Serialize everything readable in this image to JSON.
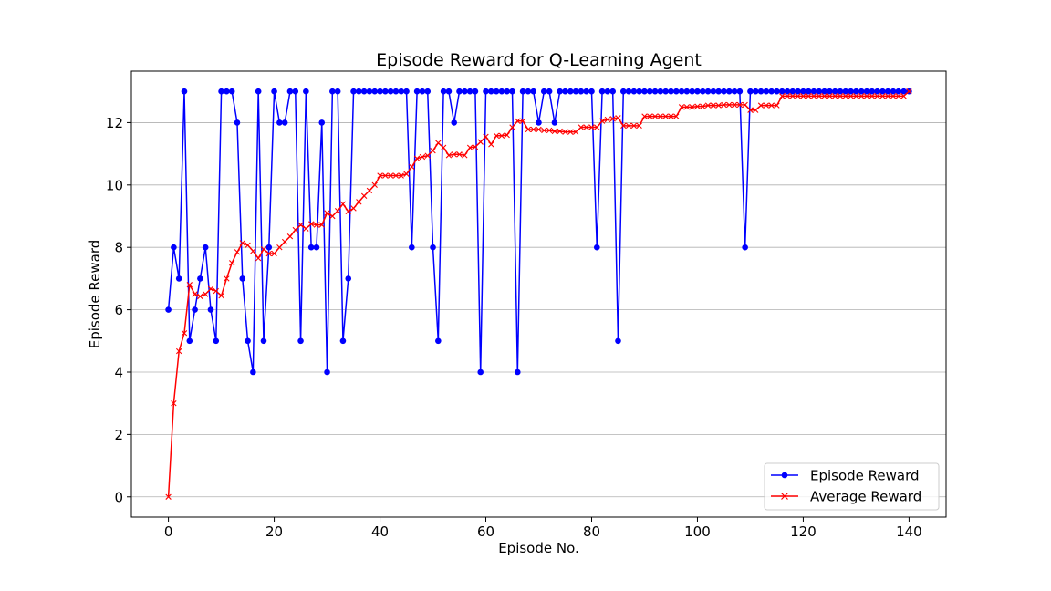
{
  "chart_data": {
    "type": "line",
    "title": "Episode Reward for Q-Learning Agent",
    "xlabel": "Episode No.",
    "ylabel": "Episode Reward",
    "xlim": [
      -7,
      147
    ],
    "ylim": [
      -0.65,
      13.65
    ],
    "xticks": [
      0,
      20,
      40,
      60,
      80,
      100,
      120,
      140
    ],
    "yticks": [
      0,
      2,
      4,
      6,
      8,
      10,
      12
    ],
    "grid": "horizontal",
    "legend_position": "lower-right",
    "series": [
      {
        "name": "Episode Reward",
        "color": "#0000ff",
        "marker": "circle",
        "x": [
          0,
          1,
          2,
          3,
          4,
          5,
          6,
          7,
          8,
          9,
          10,
          11,
          12,
          13,
          14,
          15,
          16,
          17,
          18,
          19,
          20,
          21,
          22,
          23,
          24,
          25,
          26,
          27,
          28,
          29,
          30,
          31,
          32,
          33,
          34,
          35,
          36,
          37,
          38,
          39,
          40,
          41,
          42,
          43,
          44,
          45,
          46,
          47,
          48,
          49,
          50,
          51,
          52,
          53,
          54,
          55,
          56,
          57,
          58,
          59,
          60,
          61,
          62,
          63,
          64,
          65,
          66,
          67,
          68,
          69,
          70,
          71,
          72,
          73,
          74,
          75,
          76,
          77,
          78,
          79,
          80,
          81,
          82,
          83,
          84,
          85,
          86,
          87,
          88,
          89,
          90,
          91,
          92,
          93,
          94,
          95,
          96,
          97,
          98,
          99,
          100,
          101,
          102,
          103,
          104,
          105,
          106,
          107,
          108,
          109,
          110,
          111,
          112,
          113,
          114,
          115,
          116,
          117,
          118,
          119,
          120,
          121,
          122,
          123,
          124,
          125,
          126,
          127,
          128,
          129,
          130,
          131,
          132,
          133,
          134,
          135,
          136,
          137,
          138,
          139,
          140
        ],
        "values": [
          6,
          8,
          7,
          13,
          5,
          6,
          7,
          8,
          6,
          5,
          13,
          13,
          13,
          12,
          7,
          5,
          4,
          13,
          5,
          8,
          13,
          12,
          12,
          13,
          13,
          5,
          13,
          8,
          8,
          12,
          4,
          13,
          13,
          5,
          7,
          13,
          13,
          13,
          13,
          13,
          13,
          13,
          13,
          13,
          13,
          13,
          8,
          13,
          13,
          13,
          8,
          5,
          13,
          13,
          12,
          13,
          13,
          13,
          13,
          4,
          13,
          13,
          13,
          13,
          13,
          13,
          4,
          13,
          13,
          13,
          12,
          13,
          13,
          12,
          13,
          13,
          13,
          13,
          13,
          13,
          13,
          8,
          13,
          13,
          13,
          5,
          13,
          13,
          13,
          13,
          13,
          13,
          13,
          13,
          13,
          13,
          13,
          13,
          13,
          13,
          13,
          13,
          13,
          13,
          13,
          13,
          13,
          13,
          13,
          8,
          13,
          13,
          13,
          13,
          13,
          13,
          13,
          13,
          13,
          13,
          13,
          13,
          13,
          13,
          13,
          13,
          13,
          13,
          13,
          13,
          13,
          13,
          13,
          13,
          13,
          13,
          13,
          13,
          13,
          13,
          13
        ]
      },
      {
        "name": "Average Reward",
        "color": "#ff0000",
        "marker": "x",
        "x": [
          0,
          1,
          2,
          3,
          4,
          5,
          6,
          7,
          8,
          9,
          10,
          11,
          12,
          13,
          14,
          15,
          16,
          17,
          18,
          19,
          20,
          21,
          22,
          23,
          24,
          25,
          26,
          27,
          28,
          29,
          30,
          31,
          32,
          33,
          34,
          35,
          36,
          37,
          38,
          39,
          40,
          41,
          42,
          43,
          44,
          45,
          46,
          47,
          48,
          49,
          50,
          51,
          52,
          53,
          54,
          55,
          56,
          57,
          58,
          59,
          60,
          61,
          62,
          63,
          64,
          65,
          66,
          67,
          68,
          69,
          70,
          71,
          72,
          73,
          74,
          75,
          76,
          77,
          78,
          79,
          80,
          81,
          82,
          83,
          84,
          85,
          86,
          87,
          88,
          89,
          90,
          91,
          92,
          93,
          94,
          95,
          96,
          97,
          98,
          99,
          100,
          101,
          102,
          103,
          104,
          105,
          106,
          107,
          108,
          109,
          110,
          111,
          112,
          113,
          114,
          115,
          116,
          117,
          118,
          119,
          120,
          121,
          122,
          123,
          124,
          125,
          126,
          127,
          128,
          129,
          130,
          131,
          132,
          133,
          134,
          135,
          136,
          137,
          138,
          139,
          140
        ],
        "values": [
          0,
          3,
          4.67,
          5.25,
          6.8,
          6.5,
          6.43,
          6.5,
          6.67,
          6.6,
          6.45,
          7.0,
          7.5,
          7.85,
          8.14,
          8.07,
          7.88,
          7.65,
          7.94,
          7.8,
          7.8,
          8.0,
          8.18,
          8.35,
          8.56,
          8.72,
          8.6,
          8.75,
          8.72,
          8.72,
          9.1,
          9.0,
          9.17,
          9.39,
          9.15,
          9.25,
          9.46,
          9.65,
          9.82,
          10.0,
          10.3,
          10.3,
          10.3,
          10.3,
          10.3,
          10.35,
          10.58,
          10.85,
          10.9,
          10.94,
          11.1,
          11.35,
          11.2,
          10.95,
          10.98,
          10.98,
          10.95,
          11.2,
          11.22,
          11.38,
          11.55,
          11.3,
          11.58,
          11.58,
          11.6,
          11.85,
          12.05,
          12.05,
          11.78,
          11.78,
          11.78,
          11.75,
          11.75,
          11.72,
          11.72,
          11.7,
          11.7,
          11.7,
          11.85,
          11.85,
          11.85,
          11.85,
          12.05,
          12.1,
          12.12,
          12.15,
          11.9,
          11.9,
          11.9,
          11.9,
          12.2,
          12.2,
          12.2,
          12.2,
          12.2,
          12.2,
          12.2,
          12.5,
          12.5,
          12.5,
          12.52,
          12.52,
          12.55,
          12.55,
          12.55,
          12.57,
          12.57,
          12.57,
          12.57,
          12.57,
          12.4,
          12.4,
          12.55,
          12.55,
          12.55,
          12.55,
          12.85,
          12.85,
          12.85,
          12.85,
          12.85,
          12.85,
          12.85,
          12.85,
          12.85,
          12.85,
          12.85,
          12.85,
          12.85,
          12.85,
          12.85,
          12.85,
          12.85,
          12.85,
          12.85,
          12.85,
          12.85,
          12.85,
          12.85,
          12.85,
          13.0
        ]
      }
    ]
  }
}
